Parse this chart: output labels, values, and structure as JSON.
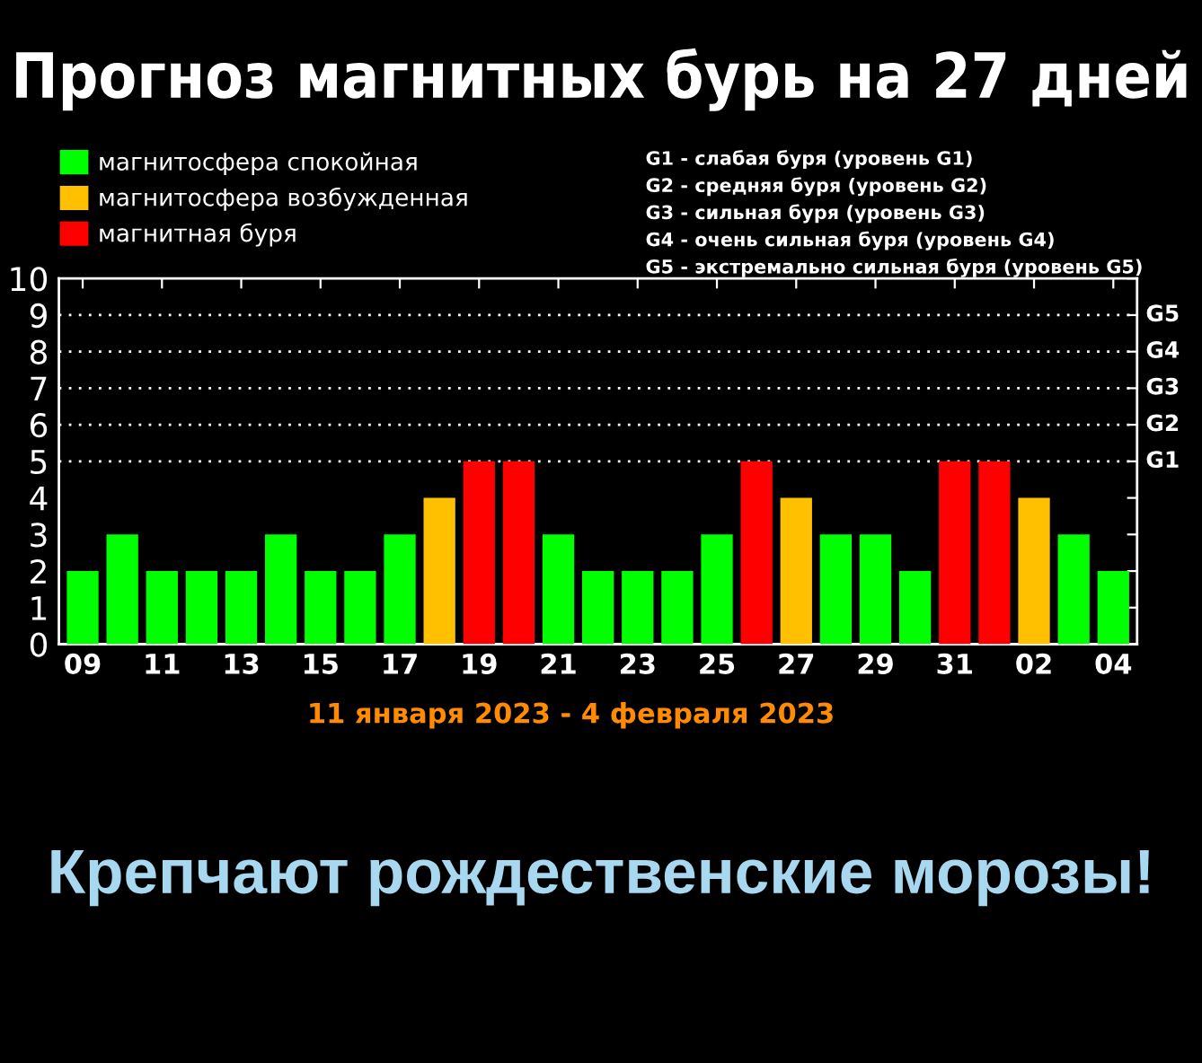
{
  "chart_data": {
    "type": "bar",
    "title": "Прогноз магнитных бурь на 27 дней",
    "subtitle": "11 января 2023 - 4 февраля 2023",
    "categories": [
      "09",
      null,
      "11",
      null,
      "13",
      null,
      "15",
      null,
      "17",
      null,
      "19",
      null,
      "21",
      null,
      "23",
      null,
      "25",
      null,
      "27",
      null,
      "29",
      null,
      "31",
      null,
      "02",
      null,
      "04"
    ],
    "series": [
      {
        "name": "магнитосфера спокойная",
        "color": "#00ff00",
        "values": [
          2,
          3,
          2,
          2,
          2,
          3,
          2,
          2,
          3,
          null,
          null,
          null,
          3,
          2,
          2,
          2,
          3,
          null,
          null,
          3,
          3,
          2,
          null,
          null,
          null,
          3,
          2
        ]
      },
      {
        "name": "магнитосфера возбужденная",
        "color": "#ffc000",
        "values": [
          null,
          null,
          null,
          null,
          null,
          null,
          null,
          null,
          null,
          4,
          null,
          null,
          null,
          null,
          null,
          null,
          null,
          null,
          4,
          null,
          null,
          null,
          null,
          null,
          4,
          null,
          null
        ]
      },
      {
        "name": "магнитная буря",
        "color": "#ff0000",
        "values": [
          null,
          null,
          null,
          null,
          null,
          null,
          null,
          null,
          null,
          null,
          5,
          5,
          null,
          null,
          null,
          null,
          null,
          5,
          null,
          null,
          null,
          null,
          5,
          5,
          null,
          null,
          null
        ]
      }
    ],
    "ylim": [
      0,
      10
    ],
    "yticks": [
      0,
      1,
      2,
      3,
      4,
      5,
      6,
      7,
      8,
      9,
      10
    ],
    "ref_lines": [
      {
        "axis": "y",
        "value": 5,
        "label": "G1",
        "color": "#ffffff",
        "line_style": "dotted"
      },
      {
        "axis": "y",
        "value": 6,
        "label": "G2",
        "color": "#ffffff",
        "line_style": "dotted"
      },
      {
        "axis": "y",
        "value": 7,
        "label": "G3",
        "color": "#ffffff",
        "line_style": "dotted"
      },
      {
        "axis": "y",
        "value": 8,
        "label": "G4",
        "color": "#ffffff",
        "line_style": "dotted"
      },
      {
        "axis": "y",
        "value": 9,
        "label": "G5",
        "color": "#ffffff",
        "line_style": "dotted"
      }
    ],
    "annotations": [
      "G1 - слабая буря (уровень G1)",
      "G2 - средняя буря (уровень G2)",
      "G3 - сильная буря (уровень G3)",
      "G4 - очень сильная буря (уровень G4)",
      "G5 - экстремально сильная буря (уровень G5)",
      "Крепчают рождественские морозы!"
    ],
    "legend": "top left",
    "grid": false
  }
}
